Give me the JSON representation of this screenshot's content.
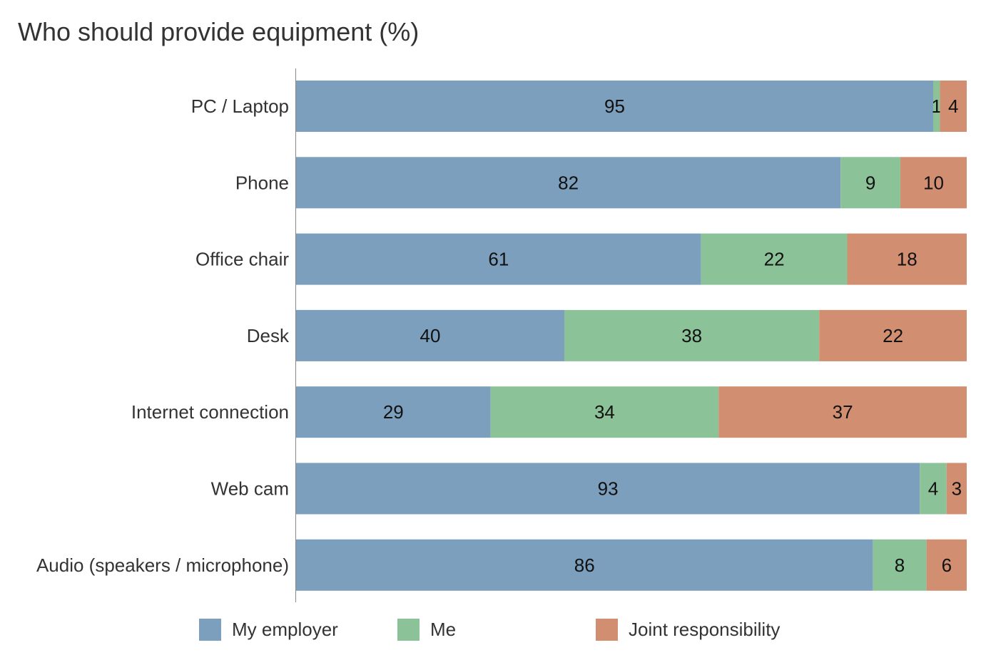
{
  "chart_data": {
    "type": "bar",
    "orientation": "horizontal",
    "stacked": true,
    "normalized": true,
    "title": "Who should provide equipment (%)",
    "xlabel": "",
    "ylabel": "",
    "grid": false,
    "legend_position": "bottom",
    "categories": [
      "PC / Laptop",
      "Phone",
      "Office chair",
      "Desk",
      "Internet connection",
      "Web cam",
      "Audio (speakers / microphone)"
    ],
    "series": [
      {
        "name": "My employer",
        "color": "#7b9fbc",
        "values": [
          95,
          82,
          61,
          40,
          29,
          93,
          86
        ]
      },
      {
        "name": "Me",
        "color": "#8bc298",
        "values": [
          1,
          9,
          22,
          38,
          34,
          4,
          8
        ]
      },
      {
        "name": "Joint responsibility",
        "color": "#d18e70",
        "values": [
          4,
          10,
          18,
          22,
          37,
          3,
          6
        ]
      }
    ]
  }
}
